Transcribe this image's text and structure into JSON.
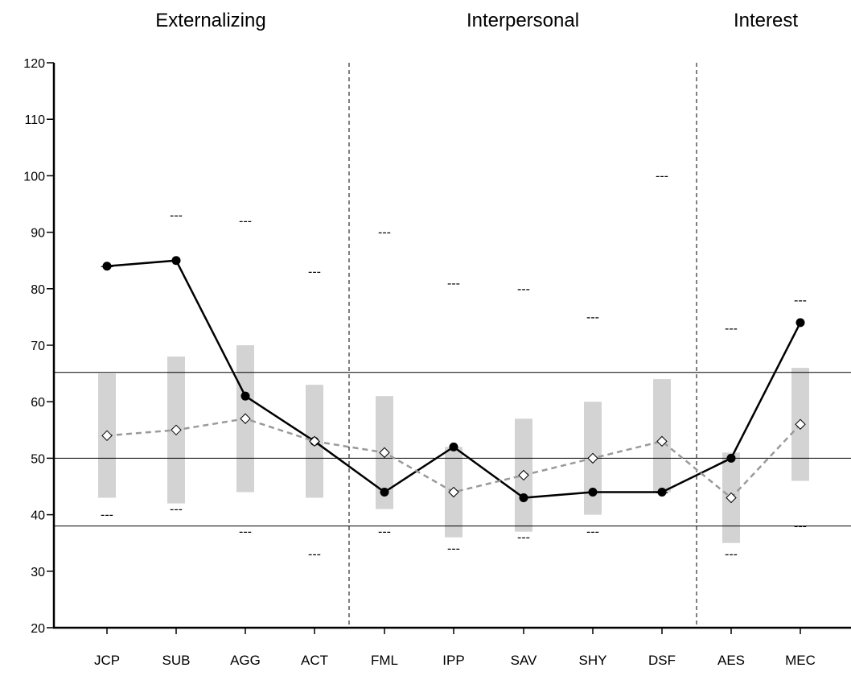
{
  "chart_data": {
    "type": "line",
    "sections": [
      {
        "title": "Externalizing",
        "categories": [
          "JCP",
          "SUB",
          "AGG",
          "ACT"
        ]
      },
      {
        "title": "Interpersonal",
        "categories": [
          "FML",
          "IPP",
          "SAV",
          "SHY",
          "DSF"
        ]
      },
      {
        "title": "Interest",
        "categories": [
          "AES",
          "MEC"
        ]
      }
    ],
    "categories": [
      "JCP",
      "SUB",
      "AGG",
      "ACT",
      "FML",
      "IPP",
      "SAV",
      "SHY",
      "DSF",
      "AES",
      "MEC"
    ],
    "ylim": [
      20,
      120
    ],
    "yticks": [
      "20",
      "30",
      "40",
      "50",
      "60",
      "70",
      "80",
      "90",
      "100",
      "110",
      "120"
    ],
    "reference_lines": [
      38,
      50,
      65.2
    ],
    "dash_marker": "---",
    "series": [
      {
        "values": [
          84,
          85,
          61,
          53,
          44,
          52,
          43,
          44,
          44,
          50,
          74
        ],
        "marker": "filled-circle",
        "color": "#000000",
        "line": "solid"
      },
      {
        "values": [
          54,
          55,
          57,
          53,
          51,
          44,
          47,
          50,
          53,
          43,
          56
        ],
        "marker": "open-diamond",
        "color": "#9a9a9a",
        "line": "dashed"
      }
    ],
    "range_bars": {
      "color": "#d3d3d3",
      "low": [
        43,
        42,
        44,
        43,
        41,
        36,
        37,
        40,
        44,
        35,
        46
      ],
      "high": [
        65,
        68,
        70,
        63,
        61,
        52,
        57,
        60,
        64,
        51,
        66
      ]
    },
    "dash_marks": {
      "upper": [
        84,
        93,
        92,
        83,
        90,
        81,
        80,
        75,
        100,
        73,
        78
      ],
      "lower": [
        40,
        41,
        37,
        33,
        37,
        34,
        36,
        37,
        44,
        33,
        38
      ]
    }
  }
}
